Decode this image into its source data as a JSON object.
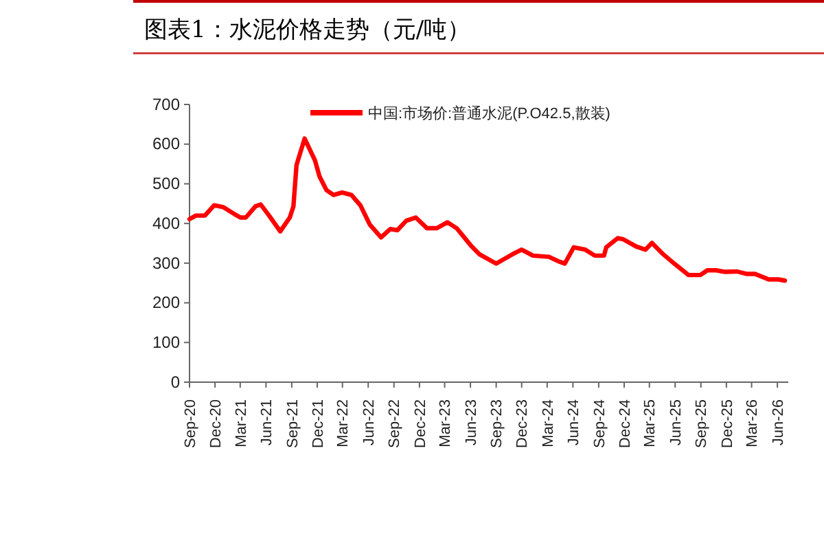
{
  "chart_data": {
    "type": "line",
    "title": "图表1：水泥价格走势（元/吨）",
    "x": [
      "2020-09-01",
      "2020-09-24",
      "2020-10-26",
      "2020-11-28",
      "2020-12-31",
      "2021-02-10",
      "2021-03-02",
      "2021-03-21",
      "2021-04-24",
      "2021-05-13",
      "2021-06-12",
      "2021-07-22",
      "2021-08-25",
      "2021-09-07",
      "2021-09-18",
      "2021-10-17",
      "2021-11-23",
      "2021-12-09",
      "2022-01-03",
      "2022-01-28",
      "2022-02-28",
      "2022-04-02",
      "2022-05-04",
      "2022-06-07",
      "2022-07-17",
      "2022-08-19",
      "2022-09-13",
      "2022-10-15",
      "2022-11-18",
      "2022-12-28",
      "2023-02-01",
      "2023-03-11",
      "2023-04-13",
      "2023-06-02",
      "2023-07-04",
      "2023-09-01",
      "2023-10-28",
      "2023-12-01",
      "2024-01-10",
      "2024-03-07",
      "2024-04-09",
      "2024-05-03",
      "2024-06-04",
      "2024-07-15",
      "2024-08-18",
      "2024-09-20",
      "2024-09-28",
      "2024-11-08",
      "2024-11-28",
      "2025-01-13",
      "2025-02-15",
      "2025-03-10",
      "2025-04-20",
      "2025-06-01",
      "2025-07-19",
      "2025-08-30",
      "2025-09-24",
      "2025-10-25",
      "2025-11-27",
      "2026-01-08",
      "2026-02-10",
      "2026-03-13",
      "2026-05-01",
      "2026-06-04",
      "2026-06-28"
    ],
    "series": [
      {
        "name": "中国:市场价:普通水泥(P.O42.5,散装)",
        "color": "#ff0000",
        "values": [
          411,
          420,
          420,
          446,
          441,
          423,
          415,
          415,
          443,
          448,
          420,
          380,
          415,
          443,
          547,
          614,
          559,
          519,
          484,
          472,
          478,
          472,
          446,
          397,
          365,
          386,
          383,
          407,
          415,
          388,
          388,
          403,
          388,
          345,
          322,
          299,
          322,
          334,
          319,
          316,
          305,
          299,
          340,
          334,
          319,
          319,
          340,
          363,
          360,
          342,
          334,
          351,
          322,
          297,
          270,
          270,
          282,
          282,
          278,
          279,
          273,
          273,
          259,
          259,
          256
        ]
      }
    ],
    "xlim": [
      "2020-09-01",
      "2026-07-10"
    ],
    "xticks": [
      {
        "value": "2020-09-01",
        "label": "Sep-20"
      },
      {
        "value": "2020-12-01",
        "label": "Dec-20"
      },
      {
        "value": "2021-03-01",
        "label": "Mar-21"
      },
      {
        "value": "2021-06-01",
        "label": "Jun-21"
      },
      {
        "value": "2021-09-01",
        "label": "Sep-21"
      },
      {
        "value": "2021-12-01",
        "label": "Dec-21"
      },
      {
        "value": "2022-03-01",
        "label": "Mar-22"
      },
      {
        "value": "2022-06-01",
        "label": "Jun-22"
      },
      {
        "value": "2022-09-01",
        "label": "Sep-22"
      },
      {
        "value": "2022-12-01",
        "label": "Dec-22"
      },
      {
        "value": "2023-03-01",
        "label": "Mar-23"
      },
      {
        "value": "2023-06-01",
        "label": "Jun-23"
      },
      {
        "value": "2023-09-01",
        "label": "Sep-23"
      },
      {
        "value": "2023-12-01",
        "label": "Dec-23"
      },
      {
        "value": "2024-03-01",
        "label": "Mar-24"
      },
      {
        "value": "2024-06-01",
        "label": "Jun-24"
      },
      {
        "value": "2024-09-01",
        "label": "Sep-24"
      },
      {
        "value": "2024-12-01",
        "label": "Dec-24"
      },
      {
        "value": "2025-03-01",
        "label": "Mar-25"
      },
      {
        "value": "2025-06-01",
        "label": "Jun-25"
      },
      {
        "value": "2025-09-01",
        "label": "Sep-25"
      },
      {
        "value": "2025-12-01",
        "label": "Dec-25"
      },
      {
        "value": "2026-03-01",
        "label": "Mar-26"
      },
      {
        "value": "2026-06-01",
        "label": "Jun-26"
      }
    ],
    "ylim": [
      0,
      700
    ],
    "yticks": [
      0,
      100,
      200,
      300,
      400,
      500,
      600,
      700
    ],
    "grid": false,
    "legend": "top",
    "marker": "none",
    "line_style": "solid"
  }
}
